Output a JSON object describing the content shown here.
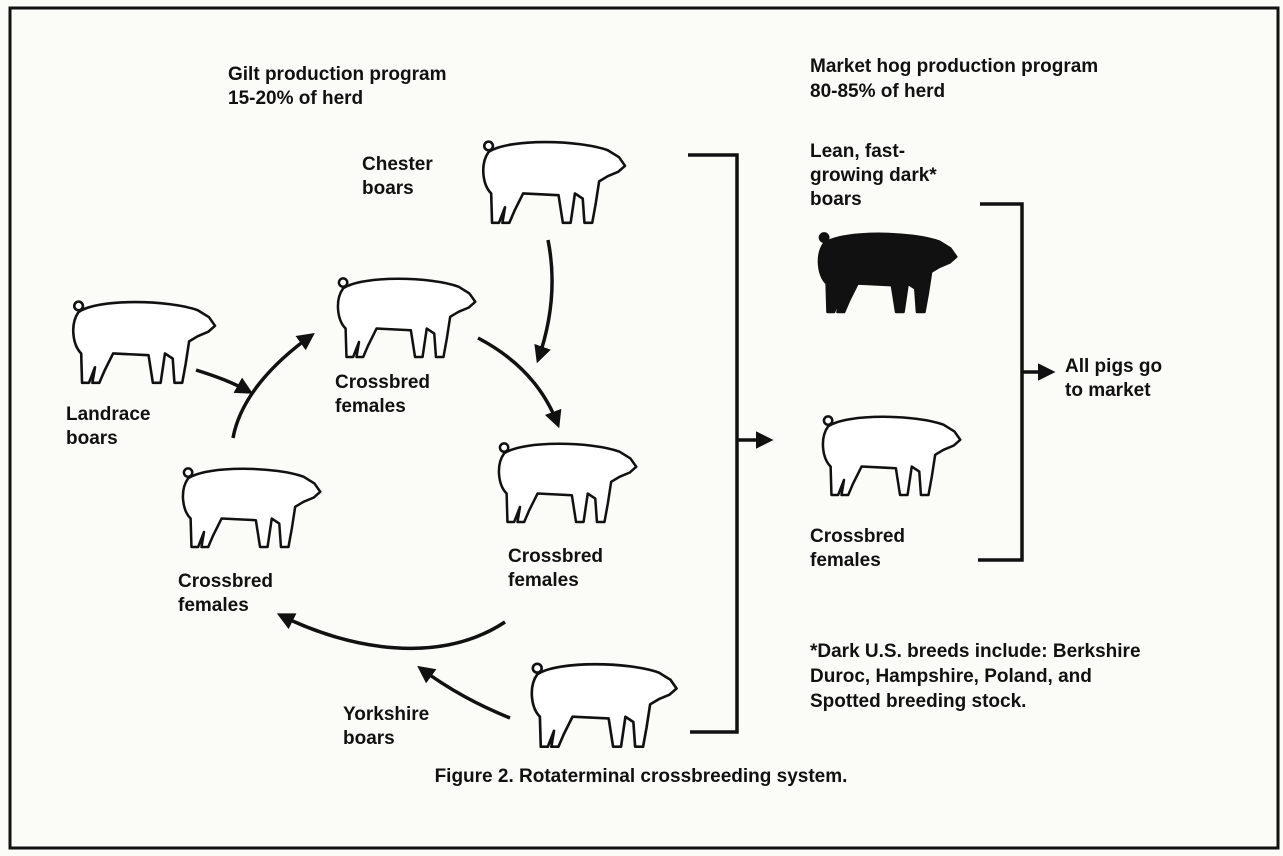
{
  "gilt_program": {
    "lines": [
      "Gilt production program",
      "15-20% of herd"
    ]
  },
  "market_program": {
    "lines": [
      "Market hog production program",
      "80-85% of herd"
    ]
  },
  "nodes": [
    {
      "lines": [
        "Chester",
        "boars"
      ]
    },
    {
      "lines": [
        "Landrace",
        "boars"
      ]
    },
    {
      "lines": [
        "Crossbred",
        "females"
      ]
    },
    {
      "lines": [
        "Crossbred",
        "females"
      ]
    },
    {
      "lines": [
        "Crossbred",
        "females"
      ]
    },
    {
      "lines": [
        "Yorkshire",
        "boars"
      ]
    },
    {
      "lines": [
        "Lean, fast-",
        "growing dark*",
        "boars"
      ]
    },
    {
      "lines": [
        "Crossbred",
        "females"
      ]
    },
    {
      "lines": [
        "All pigs go",
        "to market"
      ]
    }
  ],
  "footnote": {
    "lines": [
      "*Dark U.S. breeds include: Berkshire",
      "Duroc, Hampshire, Poland, and",
      "Spotted breeding stock."
    ]
  },
  "caption": "Figure 2. Rotaterminal crossbreeding system."
}
